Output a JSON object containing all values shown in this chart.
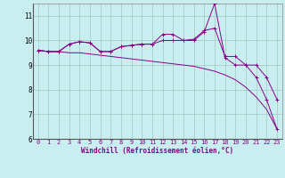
{
  "xlabel": "Windchill (Refroidissement éolien,°C)",
  "x": [
    0,
    1,
    2,
    3,
    4,
    5,
    6,
    7,
    8,
    9,
    10,
    11,
    12,
    13,
    14,
    15,
    16,
    17,
    18,
    19,
    20,
    21,
    22,
    23
  ],
  "line1": [
    9.6,
    9.55,
    9.55,
    9.85,
    9.95,
    9.9,
    9.55,
    9.55,
    9.75,
    9.8,
    9.85,
    9.85,
    10.25,
    10.25,
    10.0,
    10.0,
    10.35,
    11.5,
    9.3,
    9.0,
    9.0,
    8.5,
    7.6,
    6.4
  ],
  "line2": [
    9.6,
    9.55,
    9.55,
    9.85,
    9.95,
    9.9,
    9.55,
    9.55,
    9.75,
    9.8,
    9.85,
    9.85,
    10.0,
    10.0,
    10.0,
    10.05,
    10.4,
    10.5,
    9.35,
    9.35,
    9.0,
    9.0,
    8.5,
    7.6
  ],
  "line3": [
    9.6,
    9.55,
    9.55,
    9.5,
    9.5,
    9.45,
    9.4,
    9.35,
    9.3,
    9.25,
    9.2,
    9.15,
    9.1,
    9.05,
    9.0,
    8.95,
    8.85,
    8.75,
    8.6,
    8.4,
    8.1,
    7.7,
    7.2,
    6.4
  ],
  "ylim": [
    6.0,
    11.5
  ],
  "yticks": [
    6,
    7,
    8,
    9,
    10,
    11
  ],
  "bg_color": "#c8eef0",
  "grid_color": "#a0c8c0",
  "line_color": "#880088",
  "spine_color": "#888888",
  "xlabel_color": "#880088",
  "tick_color": "#880088",
  "ytick_color": "#000000",
  "xlabel_fontsize": 5.5,
  "tick_fontsize": 5.0,
  "ytick_fontsize": 5.5,
  "linewidth": 0.7,
  "markersize": 2.5
}
